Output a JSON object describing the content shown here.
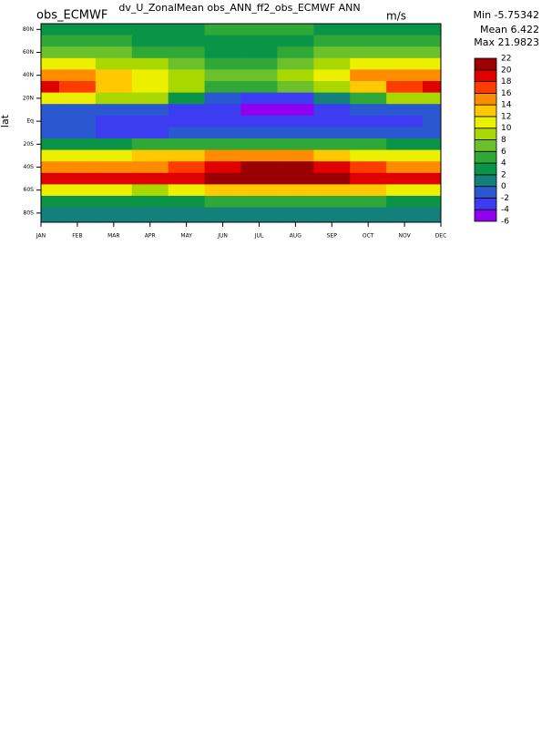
{
  "chart_data": {
    "type": "contour",
    "title": "dv_U_ZonalMean obs_ANN_ff2_obs_ECMWF ANN",
    "left_label": "obs_ECMWF",
    "units": "m/s",
    "stats": [
      "Min -5.75342",
      "Mean 6.422",
      "Max 21.9823"
    ],
    "y_label": "lat",
    "categories": [
      "JAN",
      "FEB",
      "MAR",
      "APR",
      "MAY",
      "JUN",
      "JUL",
      "AUG",
      "SEP",
      "OCT",
      "NOV",
      "DEC"
    ],
    "y": [
      80,
      70,
      60,
      50,
      40,
      30,
      20,
      10,
      0,
      -10,
      -20,
      -30,
      -40,
      -50,
      -60,
      -70,
      -80
    ],
    "ylim": [
      -88,
      85
    ],
    "yticks": [
      {
        "value": 80,
        "label": "80N"
      },
      {
        "value": 60,
        "label": "60N"
      },
      {
        "value": 40,
        "label": "40N"
      },
      {
        "value": 20,
        "label": "20N"
      },
      {
        "value": 0,
        "label": "Eq"
      },
      {
        "value": -20,
        "label": "20S"
      },
      {
        "value": -40,
        "label": "40S"
      },
      {
        "value": -60,
        "label": "60S"
      },
      {
        "value": -80,
        "label": "80S"
      }
    ],
    "z": [
      [
        2,
        3,
        3,
        2,
        3,
        4,
        4,
        4,
        3,
        3,
        3,
        2
      ],
      [
        5,
        5,
        4,
        3,
        3,
        3,
        3,
        3,
        4,
        5,
        5,
        5
      ],
      [
        7,
        7,
        6,
        5,
        4,
        3,
        3,
        4,
        6,
        7,
        7,
        7
      ],
      [
        10,
        10,
        9,
        8,
        6,
        5,
        5,
        6,
        9,
        10,
        10,
        10
      ],
      [
        15,
        14,
        12,
        11,
        8,
        6,
        6,
        8,
        11,
        14,
        15,
        15
      ],
      [
        19,
        17,
        13,
        11,
        9,
        5,
        5,
        6,
        9,
        13,
        17,
        18
      ],
      [
        10,
        10,
        9,
        8,
        3,
        -2,
        -4,
        -4,
        0,
        5,
        8,
        9
      ],
      [
        -1,
        -1,
        -1,
        -2,
        -3,
        -4,
        -5,
        -5,
        -4,
        -2,
        -1,
        -1
      ],
      [
        -2,
        -2,
        -3,
        -3,
        -3,
        -4,
        -4,
        -4,
        -3,
        -3,
        -3,
        -2
      ],
      [
        -2,
        -2,
        -3,
        -3,
        -2,
        -2,
        -2,
        -2,
        -2,
        -2,
        -2,
        -2
      ],
      [
        3,
        3,
        3,
        4,
        5,
        5,
        5,
        5,
        4,
        4,
        3,
        3
      ],
      [
        10,
        10,
        11,
        12,
        13,
        14,
        14,
        14,
        12,
        11,
        10,
        10
      ],
      [
        14,
        14,
        15,
        15,
        16,
        19,
        20,
        20,
        18,
        16,
        15,
        15
      ],
      [
        19,
        19,
        18,
        18,
        18,
        20,
        21,
        21,
        20,
        19,
        19,
        19
      ],
      [
        10,
        10,
        10,
        9,
        10,
        12,
        13,
        13,
        12,
        12,
        11,
        10
      ],
      [
        3,
        3,
        3,
        3,
        3,
        4,
        4,
        4,
        4,
        4,
        3,
        3
      ],
      [
        0,
        0,
        0,
        1,
        1,
        1,
        1,
        1,
        1,
        0,
        0,
        0
      ]
    ],
    "levels": [
      -6,
      -4,
      -2,
      0,
      2,
      4,
      6,
      8,
      10,
      12,
      14,
      16,
      18,
      20,
      22
    ],
    "colors": [
      "#9000ee",
      "#3c3cf0",
      "#2a58d0",
      "#13807c",
      "#0a9448",
      "#30a838",
      "#6cc02c",
      "#a8d800",
      "#ecf000",
      "#ffc800",
      "#ff8c00",
      "#ff3c00",
      "#e00000",
      "#9a0000"
    ]
  }
}
